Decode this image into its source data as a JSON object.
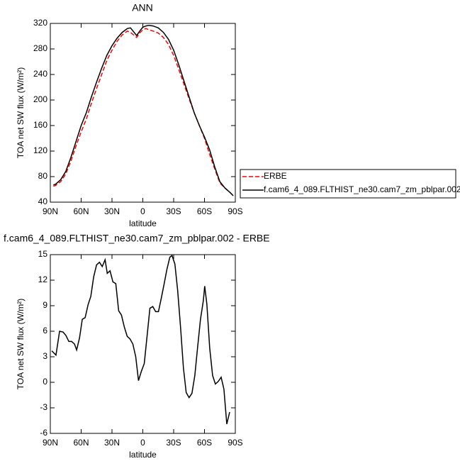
{
  "chart_data": [
    {
      "type": "line",
      "title": "ANN",
      "x_label": "latitude",
      "y_label": "TOA net SW flux (W/m²)",
      "x": [
        87,
        85,
        80,
        75,
        70,
        65,
        60,
        55,
        50,
        45,
        40,
        35,
        30,
        25,
        20,
        15,
        12,
        9,
        6,
        3,
        0,
        -3,
        -6,
        -10,
        -15,
        -20,
        -25,
        -30,
        -35,
        -40,
        -45,
        -50,
        -55,
        -60,
        -65,
        -70,
        -75,
        -80,
        -85,
        -88
      ],
      "series": [
        {
          "name": "ERBE",
          "color": "#ff0000",
          "line_style": "dashed",
          "values": [
            65,
            66,
            72,
            84,
            104,
            128,
            150,
            170,
            195,
            218,
            240,
            262,
            278,
            292,
            302,
            308,
            306,
            302,
            298,
            305,
            310,
            312,
            310,
            308,
            305,
            298,
            287,
            270,
            248,
            225,
            202,
            180,
            160,
            140,
            115,
            92,
            70,
            62,
            55,
            50
          ]
        },
        {
          "name": "f.cam6_4_089.FLTHIST_ne30.cam7_zm_pblpar.002",
          "color": "#000000",
          "line_style": "solid",
          "values": [
            67,
            68,
            75,
            88,
            110,
            135,
            160,
            180,
            205,
            228,
            250,
            270,
            285,
            297,
            306,
            312,
            313,
            307,
            301,
            308,
            314,
            316,
            317,
            316,
            313,
            306,
            295,
            278,
            255,
            230,
            205,
            180,
            160,
            142,
            122,
            95,
            72,
            62,
            55,
            50
          ]
        }
      ],
      "xlim": [
        90,
        -90
      ],
      "ylim": [
        40,
        320
      ],
      "xticks": [
        {
          "value": 90,
          "label": "90N"
        },
        {
          "value": 60,
          "label": "60N"
        },
        {
          "value": 30,
          "label": "30N"
        },
        0,
        {
          "value": -30,
          "label": "30S"
        },
        {
          "value": -60,
          "label": "60S"
        },
        {
          "value": -90,
          "label": "90S"
        }
      ],
      "yticks": [
        40,
        80,
        120,
        160,
        200,
        240,
        280,
        320
      ],
      "legend": "right"
    },
    {
      "type": "line",
      "title": "f.cam6_4_089.FLTHIST_ne30.cam7_zm_pblpar.002 - ERBE",
      "x_label": "latitude",
      "y_label": "TOA net SW flux (W/m²)",
      "x": [
        88.6,
        84.5,
        81.0,
        77.6,
        74.8,
        72.0,
        69.3,
        66.5,
        64.4,
        61.6,
        58.9,
        56.1,
        53.3,
        50.6,
        47.8,
        45.0,
        42.2,
        39.5,
        36.7,
        34.6,
        31.9,
        29.1,
        26.3,
        23.5,
        20.8,
        18.0,
        15.2,
        12.5,
        9.7,
        6.9,
        4.2,
        1.4,
        -1.4,
        -4.2,
        -6.9,
        -9.7,
        -12.5,
        -15.2,
        -18.0,
        -20.8,
        -23.5,
        -26.3,
        -28.4,
        -31.2,
        -33.9,
        -36.7,
        -39.5,
        -42.2,
        -45.0,
        -47.8,
        -50.6,
        -53.3,
        -56.1,
        -58.9,
        -60.2,
        -62.3,
        -65.1,
        -67.9,
        -70.6,
        -73.4,
        -76.2,
        -78.9,
        -81.7,
        -84.5
      ],
      "series": [
        {
          "color": "#000000",
          "line_style": "solid",
          "values": [
            3.7,
            3.2,
            6.0,
            5.9,
            5.5,
            4.8,
            4.8,
            4.5,
            3.8,
            5.2,
            7.4,
            7.6,
            9.1,
            10.1,
            12.4,
            13.8,
            14.1,
            13.6,
            14.4,
            12.8,
            13.1,
            11.8,
            11.6,
            8.4,
            7.9,
            6.5,
            5.4,
            5.1,
            4.5,
            3.0,
            0.2,
            1.3,
            2.2,
            5.5,
            8.7,
            8.9,
            8.3,
            8.3,
            9.9,
            11.6,
            13.3,
            14.7,
            14.9,
            13.9,
            10.8,
            6.5,
            1.7,
            -1.2,
            -1.8,
            -1.3,
            0.8,
            4.1,
            7.4,
            9.6,
            11.3,
            9.2,
            4.0,
            0.8,
            -0.2,
            0.1,
            0.6,
            -0.8,
            -4.9,
            -3.5
          ]
        }
      ],
      "xlim": [
        90,
        -90
      ],
      "ylim": [
        -6,
        15
      ],
      "xticks": [
        {
          "value": 90,
          "label": "90N"
        },
        {
          "value": 60,
          "label": "60N"
        },
        {
          "value": 30,
          "label": "30N"
        },
        0,
        {
          "value": -30,
          "label": "30S"
        },
        {
          "value": -60,
          "label": "60S"
        },
        {
          "value": -90,
          "label": "90S"
        }
      ],
      "yticks": [
        -6,
        -3,
        0,
        3,
        6,
        9,
        12,
        15
      ]
    }
  ]
}
